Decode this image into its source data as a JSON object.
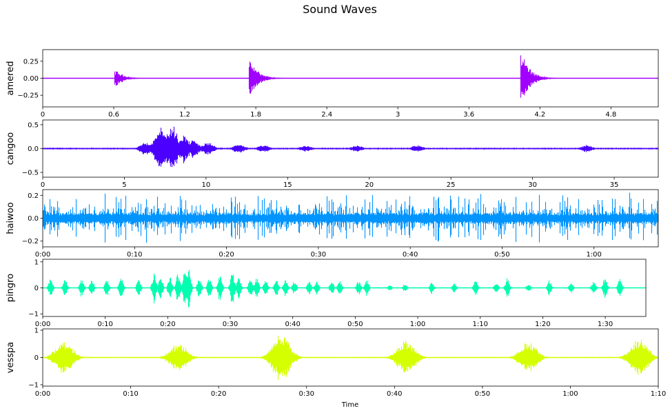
{
  "chart_data": {
    "type": "line",
    "title": "Sound Waves",
    "xlabel": "Time",
    "panels": [
      {
        "name": "amered",
        "color": "#a100ff",
        "duration_s": 5.2,
        "ylim": [
          -0.42,
          0.42
        ],
        "yticks": [
          -0.25,
          0.0,
          0.25
        ],
        "ytick_labels": [
          "−0.25",
          "0.00",
          "0.25"
        ],
        "xticks": [
          0,
          0.6,
          1.2,
          1.8,
          2.4,
          3.0,
          3.6,
          4.2,
          4.8
        ],
        "xtick_labels": [
          "0",
          "0.6",
          "1.2",
          "1.8",
          "2.4",
          "3",
          "3.6",
          "4.2",
          "4.8"
        ],
        "events": [
          {
            "t": 0.62,
            "amp": 0.12
          },
          {
            "t": 1.76,
            "amp": 0.25
          },
          {
            "t": 4.05,
            "amp": 0.38
          }
        ]
      },
      {
        "name": "cangoo",
        "color": "#4b00ff",
        "duration_s": 37.7,
        "ylim": [
          -0.6,
          0.6
        ],
        "yticks": [
          -0.5,
          0.0,
          0.5
        ],
        "ytick_labels": [
          "−0.5",
          "0.0",
          "0.5"
        ],
        "xticks": [
          0,
          5,
          10,
          15,
          20,
          25,
          30,
          35
        ],
        "xtick_labels": [
          "0",
          "5",
          "10",
          "15",
          "20",
          "25",
          "30",
          "35"
        ],
        "events": [
          {
            "t": 6.3,
            "amp": 0.15
          },
          {
            "t": 7.2,
            "amp": 0.55
          },
          {
            "t": 7.9,
            "amp": 0.52
          },
          {
            "t": 8.6,
            "amp": 0.32
          },
          {
            "t": 9.2,
            "amp": 0.2
          },
          {
            "t": 10.1,
            "amp": 0.14
          },
          {
            "t": 12.0,
            "amp": 0.1
          },
          {
            "t": 13.5,
            "amp": 0.08
          },
          {
            "t": 16.1,
            "amp": 0.07
          },
          {
            "t": 19.2,
            "amp": 0.07
          },
          {
            "t": 22.9,
            "amp": 0.08
          },
          {
            "t": 33.3,
            "amp": 0.08
          }
        ]
      },
      {
        "name": "haiwoo",
        "color": "#0094ff",
        "duration_s": 67,
        "ylim": [
          -0.25,
          0.25
        ],
        "yticks": [
          -0.2,
          0.0,
          0.2
        ],
        "ytick_labels": [
          "−0.2",
          "0.0",
          "0.2"
        ],
        "xticks": [
          0,
          10,
          20,
          30,
          40,
          50,
          60
        ],
        "xtick_labels": [
          "0:00",
          "0:10",
          "0:20",
          "0:30",
          "0:40",
          "0:50",
          "1:00"
        ],
        "events": []
      },
      {
        "name": "pingro",
        "color": "#00ffb0",
        "duration_s": 96.5,
        "ylim": [
          -1.1,
          1.1
        ],
        "yticks": [
          -1,
          0,
          1
        ],
        "ytick_labels": [
          "−1",
          "0",
          "1"
        ],
        "xticks": [
          0,
          10,
          20,
          30,
          40,
          50,
          60,
          70,
          80,
          90
        ],
        "xtick_labels": [
          "0:00",
          "0:10",
          "0:20",
          "0:30",
          "0:40",
          "0:50",
          "1:00",
          "1:10",
          "1:20",
          "1:30"
        ],
        "events": [
          {
            "t": 1.2,
            "amp": 0.4
          },
          {
            "t": 3.5,
            "amp": 0.38
          },
          {
            "t": 6.2,
            "amp": 0.4
          },
          {
            "t": 7.8,
            "amp": 0.35
          },
          {
            "t": 10.2,
            "amp": 0.42
          },
          {
            "t": 12.5,
            "amp": 0.45
          },
          {
            "t": 15.3,
            "amp": 0.35
          },
          {
            "t": 17.8,
            "amp": 0.65
          },
          {
            "t": 18.8,
            "amp": 0.5
          },
          {
            "t": 20.3,
            "amp": 0.45
          },
          {
            "t": 21.6,
            "amp": 0.62
          },
          {
            "t": 22.7,
            "amp": 0.8
          },
          {
            "t": 23.3,
            "amp": 0.98
          },
          {
            "t": 25.0,
            "amp": 0.45
          },
          {
            "t": 26.6,
            "amp": 0.42
          },
          {
            "t": 28.3,
            "amp": 0.58
          },
          {
            "t": 30.3,
            "amp": 0.7
          },
          {
            "t": 31.3,
            "amp": 0.5
          },
          {
            "t": 33.2,
            "amp": 0.4
          },
          {
            "t": 34.2,
            "amp": 0.45
          },
          {
            "t": 35.6,
            "amp": 0.4
          },
          {
            "t": 37.3,
            "amp": 0.38
          },
          {
            "t": 38.8,
            "amp": 0.4
          },
          {
            "t": 40.2,
            "amp": 0.3
          },
          {
            "t": 42.6,
            "amp": 0.3
          },
          {
            "t": 43.8,
            "amp": 0.28
          },
          {
            "t": 46.2,
            "amp": 0.3
          },
          {
            "t": 47.5,
            "amp": 0.33
          },
          {
            "t": 50.5,
            "amp": 0.3
          },
          {
            "t": 51.8,
            "amp": 0.35
          },
          {
            "t": 55.5,
            "amp": 0.13
          },
          {
            "t": 57.9,
            "amp": 0.17
          },
          {
            "t": 62.2,
            "amp": 0.28
          },
          {
            "t": 65.8,
            "amp": 0.2
          },
          {
            "t": 69.2,
            "amp": 0.32
          },
          {
            "t": 72.5,
            "amp": 0.22
          },
          {
            "t": 74.3,
            "amp": 0.42
          },
          {
            "t": 77.7,
            "amp": 0.18
          },
          {
            "t": 81.0,
            "amp": 0.32
          },
          {
            "t": 84.5,
            "amp": 0.25
          },
          {
            "t": 88.1,
            "amp": 0.3
          },
          {
            "t": 89.9,
            "amp": 0.45
          },
          {
            "t": 92.3,
            "amp": 0.42
          }
        ]
      },
      {
        "name": "vesspa",
        "color": "#d4ff00",
        "duration_s": 70,
        "ylim": [
          -1.05,
          1.05
        ],
        "yticks": [
          -1,
          0,
          1
        ],
        "ytick_labels": [
          "−1",
          "0",
          "1"
        ],
        "xticks": [
          0,
          10,
          20,
          30,
          40,
          50,
          60,
          70
        ],
        "xtick_labels": [
          "0:00",
          "0:10",
          "0:20",
          "0:30",
          "0:40",
          "0:50",
          "1:00",
          "1:10"
        ],
        "events": [
          {
            "t": 2.4,
            "amp": 0.65
          },
          {
            "t": 15.4,
            "amp": 0.55
          },
          {
            "t": 27.1,
            "amp": 0.95
          },
          {
            "t": 41.3,
            "amp": 0.65
          },
          {
            "t": 55.2,
            "amp": 0.6
          },
          {
            "t": 67.8,
            "amp": 0.75
          }
        ]
      }
    ]
  }
}
